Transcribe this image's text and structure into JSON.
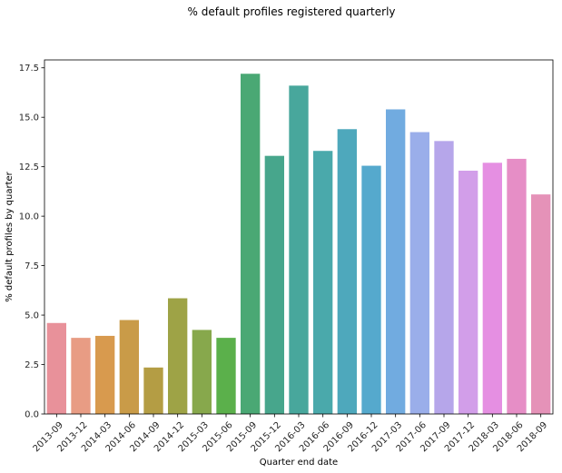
{
  "chart_data": {
    "type": "bar",
    "title": "% default profiles registered quarterly",
    "xlabel": "Quarter end date",
    "ylabel": "%  default profiles by quarter",
    "ylim": [
      0,
      17.9
    ],
    "yticks": [
      "0.0",
      "2.5",
      "5.0",
      "7.5",
      "10.0",
      "12.5",
      "15.0",
      "17.5"
    ],
    "grid": false,
    "legend": "none",
    "categories": [
      "2013-09",
      "2013-12",
      "2014-03",
      "2014-06",
      "2014-09",
      "2014-12",
      "2015-03",
      "2015-06",
      "2015-09",
      "2015-12",
      "2016-03",
      "2016-06",
      "2016-09",
      "2016-12",
      "2017-03",
      "2017-06",
      "2017-09",
      "2017-12",
      "2018-03",
      "2018-06",
      "2018-09"
    ],
    "values": [
      4.6,
      3.85,
      3.95,
      4.75,
      2.35,
      5.85,
      4.25,
      3.85,
      17.2,
      13.05,
      16.6,
      13.3,
      14.4,
      12.55,
      15.4,
      14.25,
      13.8,
      12.3,
      12.7,
      12.9,
      11.1
    ],
    "colors": [
      "#e8919a",
      "#e89c84",
      "#d89a4e",
      "#c99b48",
      "#b49d44",
      "#9ea346",
      "#87a84c",
      "#5bb04b",
      "#4aa874",
      "#47a68c",
      "#48a79c",
      "#4aa9ab",
      "#4ea8bc",
      "#55a9cd",
      "#71abe0",
      "#9aaeea",
      "#b6a6ea",
      "#d29ee9",
      "#e58fe2",
      "#e68ec6",
      "#e592b8"
    ]
  }
}
